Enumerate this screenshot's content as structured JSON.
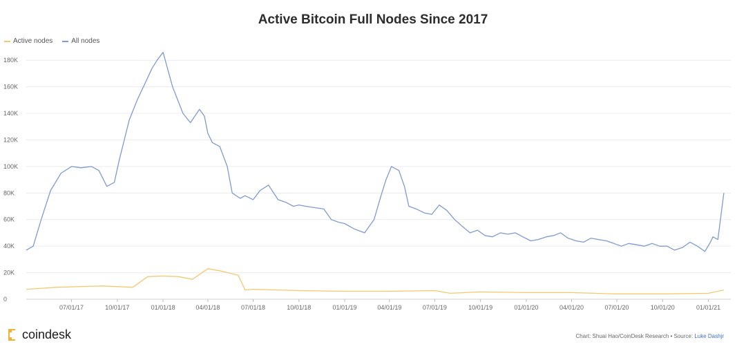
{
  "chart_data": {
    "type": "line",
    "title": "Active Bitcoin Full Nodes Since 2017",
    "xlabel": "",
    "ylabel": "",
    "ylim": [
      0,
      190000
    ],
    "yticks": [
      0,
      20000,
      40000,
      60000,
      80000,
      100000,
      120000,
      140000,
      160000,
      180000
    ],
    "ytick_labels": [
      "0",
      "20K",
      "40K",
      "60K",
      "80K",
      "100K",
      "120K",
      "140K",
      "160K",
      "180K"
    ],
    "xtick_labels": [
      "07/01/17",
      "10/01/17",
      "01/01/18",
      "04/01/18",
      "07/01/18",
      "10/01/18",
      "01/01/19",
      "04/01/19",
      "07/01/19",
      "10/01/19",
      "01/01/20",
      "04/01/20",
      "07/01/20",
      "10/01/20",
      "01/01/21"
    ],
    "grid": true,
    "legend_position": "top-left",
    "series": [
      {
        "name": "Active nodes",
        "color": "#f5c86e",
        "x": [
          "2017-04-01",
          "2017-06-01",
          "2017-09-01",
          "2017-11-01",
          "2017-12-01",
          "2018-01-01",
          "2018-02-01",
          "2018-03-01",
          "2018-04-01",
          "2018-05-01",
          "2018-06-01",
          "2018-06-15",
          "2018-07-01",
          "2018-10-01",
          "2019-01-01",
          "2019-04-01",
          "2019-07-01",
          "2019-08-01",
          "2019-10-01",
          "2020-01-01",
          "2020-04-01",
          "2020-07-01",
          "2020-10-01",
          "2021-01-01",
          "2021-02-01"
        ],
        "values": [
          7500,
          9000,
          10000,
          9000,
          17000,
          17500,
          17000,
          15000,
          23000,
          21000,
          18000,
          7000,
          7500,
          6500,
          6000,
          6000,
          6500,
          4500,
          5500,
          5000,
          5000,
          4000,
          4000,
          4500,
          7000
        ]
      },
      {
        "name": "All nodes",
        "color": "#7d9ad3",
        "x": [
          "2017-04-01",
          "2017-04-15",
          "2017-05-01",
          "2017-05-20",
          "2017-06-10",
          "2017-07-01",
          "2017-07-20",
          "2017-08-10",
          "2017-08-25",
          "2017-09-10",
          "2017-09-25",
          "2017-10-05",
          "2017-10-15",
          "2017-10-25",
          "2017-11-10",
          "2017-11-25",
          "2017-12-10",
          "2017-12-20",
          "2018-01-01",
          "2018-01-20",
          "2018-02-10",
          "2018-02-25",
          "2018-03-15",
          "2018-03-25",
          "2018-04-01",
          "2018-04-10",
          "2018-04-25",
          "2018-05-10",
          "2018-05-20",
          "2018-06-05",
          "2018-06-15",
          "2018-07-01",
          "2018-07-15",
          "2018-08-01",
          "2018-08-20",
          "2018-09-05",
          "2018-09-20",
          "2018-10-01",
          "2018-10-15",
          "2018-11-01",
          "2018-11-20",
          "2018-12-05",
          "2018-12-20",
          "2019-01-01",
          "2019-01-20",
          "2019-02-10",
          "2019-03-01",
          "2019-03-15",
          "2019-03-25",
          "2019-04-05",
          "2019-04-20",
          "2019-05-01",
          "2019-05-10",
          "2019-05-25",
          "2019-06-10",
          "2019-06-25",
          "2019-07-10",
          "2019-07-25",
          "2019-08-10",
          "2019-08-25",
          "2019-09-10",
          "2019-09-25",
          "2019-10-10",
          "2019-10-25",
          "2019-11-10",
          "2019-11-25",
          "2019-12-10",
          "2019-12-25",
          "2020-01-10",
          "2020-01-25",
          "2020-02-10",
          "2020-02-25",
          "2020-03-10",
          "2020-03-25",
          "2020-04-10",
          "2020-04-25",
          "2020-05-10",
          "2020-05-25",
          "2020-06-10",
          "2020-06-25",
          "2020-07-10",
          "2020-07-25",
          "2020-08-10",
          "2020-08-25",
          "2020-09-10",
          "2020-09-25",
          "2020-10-10",
          "2020-10-25",
          "2020-11-10",
          "2020-11-25",
          "2020-12-10",
          "2020-12-25",
          "2021-01-05",
          "2021-01-10",
          "2021-01-20",
          "2021-02-01"
        ],
        "values": [
          37000,
          40000,
          60000,
          82000,
          95000,
          100000,
          99000,
          100000,
          97000,
          85000,
          88000,
          105000,
          120000,
          135000,
          150000,
          162000,
          174000,
          180000,
          186000,
          160000,
          140000,
          133000,
          143000,
          138000,
          125000,
          118000,
          115000,
          100000,
          80000,
          76000,
          78000,
          75000,
          82000,
          86000,
          75000,
          73000,
          70000,
          71000,
          70000,
          69000,
          68000,
          60000,
          58000,
          57000,
          53000,
          50000,
          60000,
          78000,
          90000,
          100000,
          97000,
          85000,
          70000,
          68000,
          65000,
          64000,
          71000,
          67000,
          60000,
          55000,
          50000,
          52000,
          48000,
          47000,
          50000,
          49000,
          50000,
          47000,
          44000,
          45000,
          47000,
          48000,
          50000,
          46000,
          44000,
          43000,
          46000,
          45000,
          44000,
          42000,
          40000,
          42000,
          41000,
          40000,
          42000,
          40000,
          40000,
          37000,
          39000,
          43000,
          40000,
          36000,
          43000,
          47000,
          45000,
          80000
        ]
      }
    ]
  },
  "footer": {
    "brand": "coindesk",
    "credit_prefix": "Chart: Shuai Hao/CoinDesk Research • Source: ",
    "credit_link": "Luke Dashjr"
  }
}
